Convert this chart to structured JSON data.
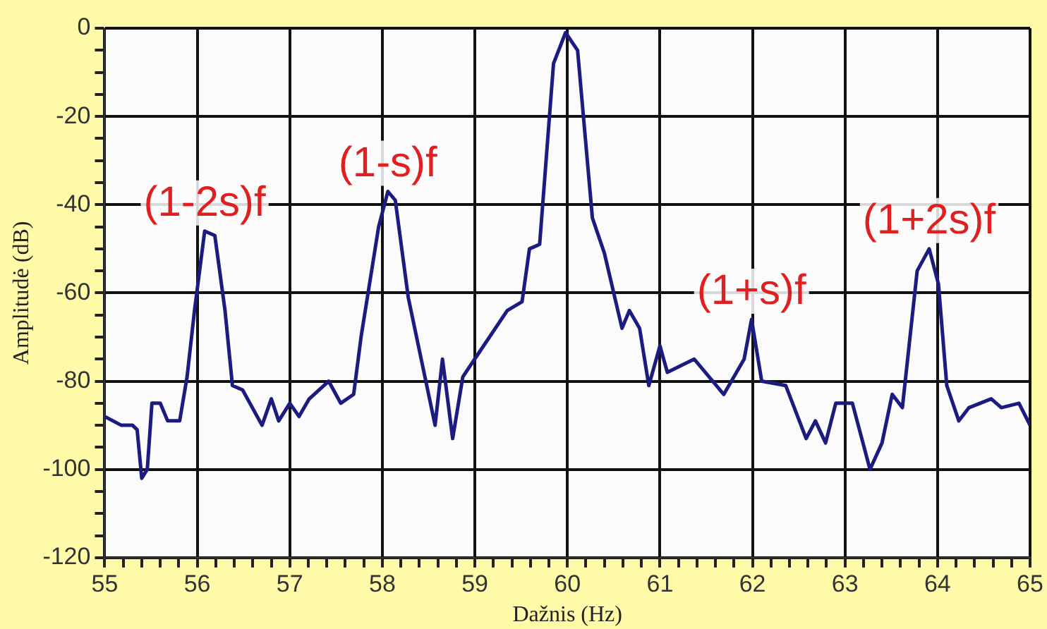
{
  "chart_data": {
    "type": "line",
    "xlabel": "Dažnis (Hz)",
    "ylabel": "Amplitudė (dB)",
    "x": [
      55,
      55.18,
      55.3,
      55.35,
      55.4,
      55.46,
      55.51,
      55.6,
      55.68,
      55.81,
      55.89,
      55.97,
      56.08,
      56.19,
      56.3,
      56.38,
      56.49,
      56.7,
      56.8,
      56.88,
      57,
      57.1,
      57.21,
      57.42,
      57.55,
      57.69,
      57.77,
      57.96,
      58.06,
      58.14,
      58.28,
      58.57,
      58.65,
      58.76,
      58.87,
      59.03,
      59.35,
      59.51,
      59.59,
      59.7,
      59.85,
      59.98,
      60.11,
      60.27,
      60.4,
      60.59,
      60.67,
      60.78,
      60.88,
      61,
      61.08,
      61.37,
      61.69,
      61.91,
      61.99,
      62.1,
      62.36,
      62.58,
      62.68,
      62.79,
      62.9,
      63.08,
      63.27,
      63.4,
      63.51,
      63.62,
      63.78,
      63.91,
      64.01,
      64.1,
      64.23,
      64.34,
      64.58,
      64.69,
      64.88,
      65
    ],
    "series": [
      {
        "color": "#1c1c80",
        "values": [
          -88,
          -90,
          -90,
          -91,
          -102,
          -100,
          -85,
          -85,
          -89,
          -89,
          -79,
          -64,
          -46,
          -47,
          -64,
          -81,
          -82,
          -90,
          -84,
          -89,
          -85,
          -88,
          -84,
          -80,
          -85,
          -83,
          -70,
          -45,
          -37,
          -39,
          -61,
          -90,
          -75,
          -93,
          -79,
          -74,
          -64,
          -62,
          -50,
          -49,
          -8,
          -1,
          -5,
          -43,
          -51,
          -68,
          -64,
          -68,
          -81,
          -72,
          -78,
          -75,
          -83,
          -75,
          -66,
          -80,
          -81,
          -93,
          -89,
          -94,
          -85,
          -85,
          -100,
          -94,
          -83,
          -86,
          -55,
          -50,
          -58,
          -81,
          -89,
          -86,
          -84,
          -86,
          -85,
          -90
        ]
      }
    ],
    "xlim": [
      55,
      65
    ],
    "ylim": [
      -120,
      0
    ],
    "xticks": [
      55,
      {
        "value": 55.2,
        "label": null
      },
      {
        "value": 55.4,
        "label": null
      },
      {
        "value": 55.6,
        "label": null
      },
      {
        "value": 55.8,
        "label": null
      },
      56,
      {
        "value": 56.2,
        "label": null
      },
      {
        "value": 56.4,
        "label": null
      },
      {
        "value": 56.6,
        "label": null
      },
      {
        "value": 56.8,
        "label": null
      },
      57,
      {
        "value": 57.2,
        "label": null
      },
      {
        "value": 57.4,
        "label": null
      },
      {
        "value": 57.6,
        "label": null
      },
      {
        "value": 57.8,
        "label": null
      },
      58,
      {
        "value": 58.2,
        "label": null
      },
      {
        "value": 58.4,
        "label": null
      },
      {
        "value": 58.6,
        "label": null
      },
      {
        "value": 58.8,
        "label": null
      },
      59,
      {
        "value": 59.2,
        "label": null
      },
      {
        "value": 59.4,
        "label": null
      },
      {
        "value": 59.6,
        "label": null
      },
      {
        "value": 59.8,
        "label": null
      },
      60,
      {
        "value": 60.2,
        "label": null
      },
      {
        "value": 60.4,
        "label": null
      },
      {
        "value": 60.6,
        "label": null
      },
      {
        "value": 60.8,
        "label": null
      },
      61,
      {
        "value": 61.2,
        "label": null
      },
      {
        "value": 61.4,
        "label": null
      },
      {
        "value": 61.6,
        "label": null
      },
      {
        "value": 61.8,
        "label": null
      },
      62,
      {
        "value": 62.2,
        "label": null
      },
      {
        "value": 62.4,
        "label": null
      },
      {
        "value": 62.6,
        "label": null
      },
      {
        "value": 62.8,
        "label": null
      },
      63,
      {
        "value": 63.2,
        "label": null
      },
      {
        "value": 63.4,
        "label": null
      },
      {
        "value": 63.6,
        "label": null
      },
      {
        "value": 63.8,
        "label": null
      },
      64,
      {
        "value": 64.2,
        "label": null
      },
      {
        "value": 64.4,
        "label": null
      },
      {
        "value": 64.6,
        "label": null
      },
      {
        "value": 64.8,
        "label": null
      },
      65
    ],
    "yticks": [
      -120,
      {
        "value": -115,
        "label": null
      },
      {
        "value": -110,
        "label": null
      },
      {
        "value": -105,
        "label": null
      },
      -100,
      {
        "value": -95,
        "label": null
      },
      {
        "value": -90,
        "label": null
      },
      {
        "value": -85,
        "label": null
      },
      -80,
      {
        "value": -75,
        "label": null
      },
      {
        "value": -70,
        "label": null
      },
      {
        "value": -65,
        "label": null
      },
      -60,
      {
        "value": -55,
        "label": null
      },
      {
        "value": -50,
        "label": null
      },
      {
        "value": -45,
        "label": null
      },
      -40,
      {
        "value": -35,
        "label": null
      },
      {
        "value": -30,
        "label": null
      },
      {
        "value": -25,
        "label": null
      },
      -20,
      {
        "value": -15,
        "label": null
      },
      {
        "value": -10,
        "label": null
      },
      {
        "value": -5,
        "label": null
      },
      0
    ],
    "grid": true,
    "legend": false,
    "marker": "none",
    "line_style": "solid",
    "annotations": [
      {
        "text": "(1-2s)f",
        "x": 56.08,
        "y": -46
      },
      {
        "text": "(1-s)f",
        "x": 58.06,
        "y": -37
      },
      {
        "text": "(1+s)f",
        "x": 61.99,
        "y": -66
      },
      {
        "text": "(1+2s)f",
        "x": 63.91,
        "y": -50
      }
    ]
  }
}
